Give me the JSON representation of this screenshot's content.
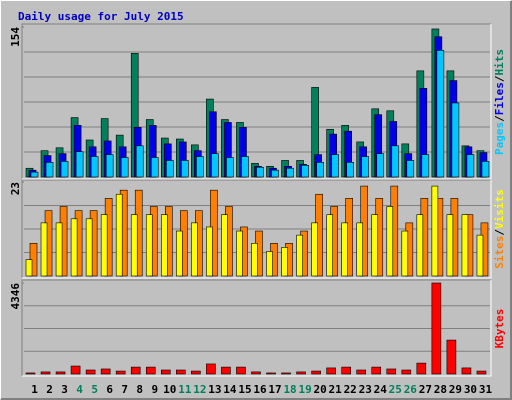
{
  "chart_data": [
    {
      "type": "bar",
      "title": "Daily usage for July 2015",
      "ylim": [
        0,
        154
      ],
      "yticks": [
        154
      ],
      "grid": true,
      "legend_separator": "/",
      "series": [
        {
          "name": "Pages",
          "color": "#00c8ff",
          "values": [
            5,
            15,
            16,
            26,
            21,
            23,
            20,
            32,
            20,
            17,
            17,
            21,
            24,
            20,
            21,
            10,
            7,
            9,
            12,
            15,
            23,
            15,
            21,
            24,
            32,
            17,
            23,
            130,
            76,
            23,
            16
          ]
        },
        {
          "name": "Files",
          "color": "#0000e8",
          "values": [
            7,
            22,
            24,
            53,
            31,
            37,
            31,
            51,
            53,
            34,
            36,
            27,
            67,
            56,
            51,
            11,
            9,
            11,
            13,
            23,
            44,
            47,
            31,
            64,
            57,
            24,
            91,
            144,
            99,
            31,
            25
          ]
        },
        {
          "name": "Hits",
          "color": "#00805c",
          "values": [
            9,
            27,
            30,
            61,
            38,
            60,
            43,
            127,
            59,
            40,
            39,
            33,
            80,
            59,
            56,
            14,
            11,
            17,
            17,
            92,
            49,
            53,
            36,
            70,
            68,
            34,
            109,
            152,
            109,
            32,
            27
          ]
        }
      ]
    },
    {
      "type": "bar",
      "ylim": [
        0,
        23
      ],
      "yticks": [
        23
      ],
      "grid": true,
      "legend_separator": "/",
      "series": [
        {
          "name": "Sites",
          "color": "#ff8000",
          "values": [
            8,
            16,
            17,
            16,
            16,
            19,
            21,
            21,
            17,
            17,
            16,
            16,
            21,
            17,
            12,
            11,
            8,
            8,
            11,
            20,
            17,
            19,
            22,
            19,
            22,
            13,
            19,
            19,
            19,
            15,
            13
          ]
        },
        {
          "name": "Visits",
          "color": "#ffff00",
          "values": [
            4,
            13,
            13,
            14,
            14,
            15,
            20,
            15,
            15,
            15,
            11,
            13,
            12,
            15,
            11,
            8,
            6,
            7,
            10,
            13,
            15,
            13,
            13,
            15,
            17,
            11,
            15,
            22,
            15,
            15,
            10
          ]
        }
      ]
    },
    {
      "type": "bar",
      "ylim": [
        0,
        4346
      ],
      "yticks": [
        4346
      ],
      "grid": true,
      "categories": [
        "1",
        "2",
        "3",
        "4",
        "5",
        "6",
        "7",
        "8",
        "9",
        "10",
        "11",
        "12",
        "13",
        "14",
        "15",
        "16",
        "17",
        "18",
        "19",
        "20",
        "21",
        "22",
        "23",
        "24",
        "25",
        "26",
        "27",
        "28",
        "29",
        "30",
        "31"
      ],
      "category_colors": [
        "#000000",
        "#000000",
        "#000000",
        "#00805c",
        "#00805c",
        "#000000",
        "#000000",
        "#000000",
        "#000000",
        "#000000",
        "#00805c",
        "#00805c",
        "#000000",
        "#000000",
        "#000000",
        "#000000",
        "#000000",
        "#00805c",
        "#00805c",
        "#000000",
        "#000000",
        "#000000",
        "#000000",
        "#000000",
        "#00805c",
        "#00805c",
        "#000000",
        "#000000",
        "#000000",
        "#000000",
        "#000000"
      ],
      "series": [
        {
          "name": "KBytes",
          "color": "#ff0000",
          "values": [
            50,
            100,
            100,
            380,
            190,
            240,
            140,
            330,
            330,
            190,
            190,
            140,
            480,
            330,
            330,
            100,
            50,
            50,
            100,
            140,
            290,
            330,
            190,
            330,
            240,
            190,
            520,
            4346,
            1620,
            290,
            140
          ]
        }
      ]
    }
  ]
}
